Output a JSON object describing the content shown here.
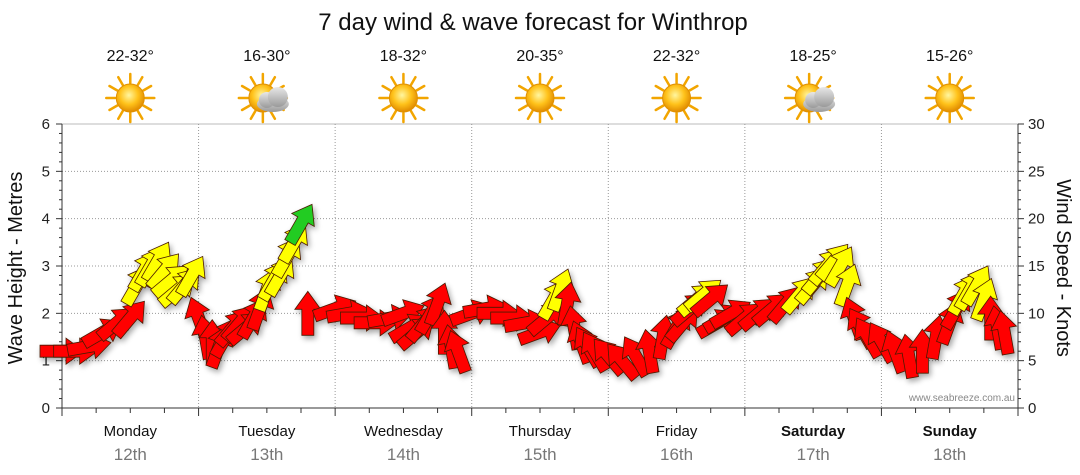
{
  "chart_data": {
    "type": "line",
    "title": "7 day wind & wave forecast for Winthrop",
    "ylabel_left": "Wave Height - Metres",
    "ylabel_right": "Wind Speed - Knots",
    "ylim_left": [
      0,
      6
    ],
    "ylim_right": [
      0,
      30
    ],
    "yticks_left": [
      "0",
      "1",
      "2",
      "3",
      "4",
      "5",
      "6"
    ],
    "yticks_right": [
      "0",
      "5",
      "10",
      "15",
      "20",
      "25",
      "30"
    ],
    "grid": true,
    "watermark": "www.seabreeze.com.au",
    "days": [
      {
        "day": "Monday",
        "date": "12th",
        "temp": "22-32°",
        "icon": "sun-icon",
        "bold": false
      },
      {
        "day": "Tuesday",
        "date": "13th",
        "temp": "16-30°",
        "icon": "sun-cloud-icon",
        "bold": false
      },
      {
        "day": "Wednesday",
        "date": "14th",
        "temp": "18-32°",
        "icon": "sun-icon",
        "bold": false
      },
      {
        "day": "Thursday",
        "date": "15th",
        "temp": "20-35°",
        "icon": "sun-icon",
        "bold": false
      },
      {
        "day": "Friday",
        "date": "16th",
        "temp": "22-32°",
        "icon": "sun-icon",
        "bold": false
      },
      {
        "day": "Saturday",
        "date": "17th",
        "temp": "18-25°",
        "icon": "sun-cloud-icon",
        "bold": true
      },
      {
        "day": "Sunday",
        "date": "18th",
        "temp": "15-26°",
        "icon": "sun-icon",
        "bold": true
      }
    ],
    "color_scale": {
      "red": "#ff0000",
      "yellow": "#ffff00",
      "green": "#22cc22"
    },
    "series": [
      {
        "x_days": [
          0.0,
          0.1,
          0.2,
          0.3,
          0.4,
          0.5,
          0.55,
          0.6,
          0.65,
          0.7,
          0.75,
          0.8,
          0.85,
          0.9,
          0.95,
          1.0,
          1.05,
          1.1,
          1.15,
          1.2,
          1.25,
          1.3,
          1.35,
          1.4,
          1.45,
          1.5,
          1.55,
          1.6,
          1.65,
          1.7,
          1.75,
          1.8,
          2.0,
          2.1,
          2.2,
          2.3,
          2.4,
          2.5,
          2.55,
          2.6,
          2.65,
          2.7,
          2.75,
          2.8,
          2.85,
          2.9,
          3.0,
          3.1,
          3.2,
          3.3,
          3.4,
          3.5,
          3.55,
          3.6,
          3.65,
          3.7,
          3.75,
          3.8,
          3.85,
          3.9,
          4.0,
          4.1,
          4.2,
          4.3,
          4.4,
          4.5,
          4.55,
          4.6,
          4.65,
          4.7,
          4.75,
          4.8,
          4.85,
          4.9,
          5.0,
          5.1,
          5.2,
          5.3,
          5.4,
          5.5,
          5.55,
          5.6,
          5.65,
          5.7,
          5.75,
          5.8,
          5.85,
          5.9,
          6.0,
          6.1,
          6.2,
          6.3,
          6.4,
          6.5,
          6.55,
          6.6,
          6.65,
          6.7,
          6.75,
          6.8,
          6.85,
          6.9
        ],
        "wave_m": [
          1.2,
          1.2,
          1.3,
          1.6,
          1.8,
          1.9,
          2.6,
          2.9,
          3.0,
          3.1,
          2.9,
          2.7,
          2.5,
          2.6,
          2.8,
          1.9,
          1.5,
          1.4,
          1.3,
          1.5,
          1.7,
          1.8,
          1.7,
          1.9,
          2.1,
          2.5,
          2.7,
          2.8,
          3.2,
          3.5,
          3.9,
          2.0,
          2.1,
          2.0,
          1.9,
          1.8,
          1.9,
          2.0,
          1.7,
          1.6,
          1.8,
          2.0,
          2.2,
          1.6,
          1.3,
          1.2,
          2.0,
          2.1,
          2.0,
          1.9,
          1.8,
          1.6,
          1.9,
          2.3,
          2.5,
          2.2,
          1.7,
          1.4,
          1.3,
          1.2,
          1.1,
          1.0,
          1.1,
          1.2,
          1.5,
          1.7,
          1.8,
          2.1,
          2.3,
          2.4,
          2.3,
          1.8,
          1.9,
          2.0,
          1.9,
          2.0,
          2.1,
          2.2,
          2.4,
          2.6,
          2.8,
          3.0,
          3.1,
          3.0,
          2.6,
          1.9,
          1.7,
          1.5,
          1.4,
          1.2,
          1.1,
          1.2,
          1.5,
          1.8,
          2.1,
          2.4,
          2.5,
          2.6,
          2.3,
          1.9,
          1.7,
          1.6
        ],
        "wind_kt": [
          5,
          5,
          6,
          8,
          9,
          10,
          13,
          15,
          16,
          17,
          15,
          14,
          12,
          13,
          14,
          9,
          7,
          6,
          6,
          7,
          8,
          9,
          8,
          10,
          11,
          13,
          14,
          15,
          17,
          18,
          20,
          10,
          11,
          10,
          9,
          9,
          10,
          10,
          8,
          8,
          9,
          10,
          11,
          8,
          6,
          6,
          10,
          11,
          10,
          9,
          9,
          8,
          10,
          12,
          13,
          11,
          8,
          7,
          6,
          6,
          5,
          5,
          5,
          6,
          7,
          8,
          9,
          11,
          12,
          12,
          11,
          9,
          9,
          10,
          9,
          10,
          10,
          11,
          12,
          13,
          14,
          15,
          16,
          15,
          13,
          9,
          8,
          7,
          7,
          6,
          5,
          6,
          7,
          9,
          10,
          12,
          13,
          13,
          12,
          9,
          8,
          7
        ],
        "wind_dir_deg": [
          270,
          270,
          260,
          240,
          230,
          220,
          210,
          210,
          210,
          210,
          220,
          230,
          230,
          220,
          210,
          160,
          170,
          180,
          200,
          210,
          220,
          220,
          230,
          210,
          200,
          200,
          210,
          210,
          210,
          210,
          210,
          180,
          250,
          260,
          270,
          270,
          260,
          250,
          240,
          230,
          220,
          210,
          200,
          180,
          170,
          160,
          250,
          260,
          270,
          270,
          260,
          250,
          230,
          210,
          200,
          190,
          170,
          160,
          150,
          150,
          140,
          140,
          150,
          170,
          190,
          210,
          220,
          230,
          230,
          230,
          230,
          240,
          240,
          240,
          230,
          230,
          230,
          220,
          220,
          220,
          220,
          220,
          220,
          210,
          200,
          160,
          150,
          150,
          150,
          160,
          170,
          180,
          190,
          200,
          210,
          210,
          210,
          210,
          200,
          180,
          170,
          170
        ]
      }
    ]
  }
}
